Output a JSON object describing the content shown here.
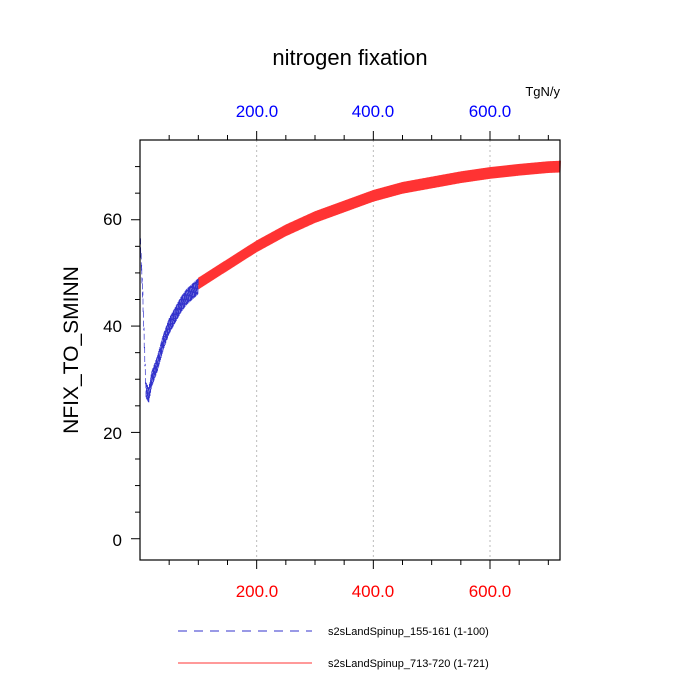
{
  "chart_data": {
    "type": "line",
    "title": "nitrogen fixation",
    "units": "TgN/y",
    "xlabel": "",
    "ylabel": "NFIX_TO_SMINN",
    "xlim": [
      0,
      720
    ],
    "ylim": [
      -4,
      75
    ],
    "bottom_x_ticks": [
      "200.0",
      "400.0",
      "600.0"
    ],
    "top_x_ticks": [
      "200.0",
      "400.0",
      "600.0"
    ],
    "y_ticks": [
      "0",
      "20",
      "40",
      "60"
    ],
    "grid": "vertical dotted at major x ticks",
    "legend_position": "bottom",
    "series": [
      {
        "name": "s2sLandSpinup_155-161 (1-100)",
        "color": "#3333cc",
        "style": "dashed",
        "x_range": [
          1,
          100
        ],
        "curve_points": [
          [
            1,
            55
          ],
          [
            5,
            45
          ],
          [
            10,
            28
          ],
          [
            15,
            27
          ],
          [
            20,
            30
          ],
          [
            30,
            33
          ],
          [
            40,
            37
          ],
          [
            50,
            40
          ],
          [
            60,
            42
          ],
          [
            70,
            44
          ],
          [
            80,
            45.5
          ],
          [
            90,
            46.5
          ],
          [
            100,
            47.5
          ]
        ],
        "seasonal_amplitude": 3
      },
      {
        "name": "s2sLandSpinup_713-720 (1-721)",
        "color": "#ff3333",
        "style": "solid",
        "x_range": [
          100,
          721
        ],
        "curve_points": [
          [
            100,
            48
          ],
          [
            150,
            51.5
          ],
          [
            200,
            55
          ],
          [
            250,
            58
          ],
          [
            300,
            60.5
          ],
          [
            350,
            62.5
          ],
          [
            400,
            64.5
          ],
          [
            450,
            66
          ],
          [
            500,
            67
          ],
          [
            550,
            68
          ],
          [
            600,
            68.8
          ],
          [
            650,
            69.4
          ],
          [
            700,
            69.9
          ],
          [
            721,
            70
          ]
        ],
        "seasonal_amplitude": 2.2
      }
    ]
  }
}
